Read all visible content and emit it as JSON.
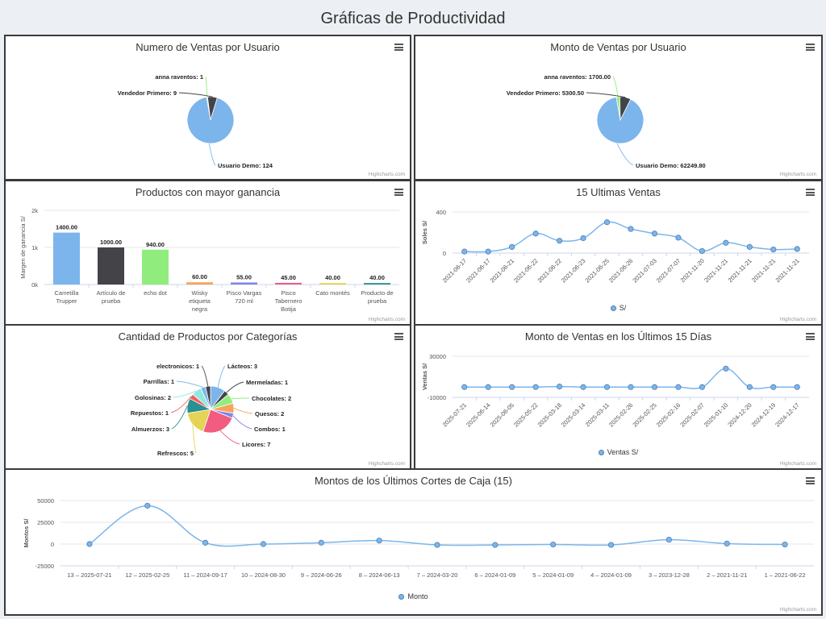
{
  "page": {
    "title": "Gráficas de Productividad",
    "credit": "Highcharts.com"
  },
  "colors": {
    "series": "#7cb5ec",
    "dark": "#434348",
    "green": "#90ed7d",
    "orange": "#f7a35c",
    "purple": "#8085e9",
    "pink": "#f15c80",
    "yellow": "#e4d354",
    "teal": "#2b908f",
    "red": "#f45b5b",
    "cyan": "#91e8e1"
  },
  "chart_data": [
    {
      "type": "pie",
      "title": "Numero de Ventas por Usuario",
      "slices": [
        {
          "label": "anna raventos: 1",
          "value": 1,
          "color": "#90ed7d"
        },
        {
          "label": "Vendedor Primero: 9",
          "value": 9,
          "color": "#434348"
        },
        {
          "label": "Usuario Demo: 124",
          "value": 124,
          "color": "#7cb5ec"
        }
      ]
    },
    {
      "type": "pie",
      "title": "Monto de Ventas por Usuario",
      "slices": [
        {
          "label": "anna raventos: 1700.00",
          "value": 1700.0,
          "color": "#90ed7d"
        },
        {
          "label": "Vendedor Primero: 5300.50",
          "value": 5300.5,
          "color": "#434348"
        },
        {
          "label": "Usuario Demo: 62249.80",
          "value": 62249.8,
          "color": "#7cb5ec"
        }
      ]
    },
    {
      "type": "bar",
      "title": "Productos con mayor ganancia",
      "ylabel": "Margen de ganancia S/",
      "ylim": [
        0,
        2000
      ],
      "yticks": [
        "0k",
        "1k",
        "2k"
      ],
      "categories": [
        "Carretilla Trupper",
        "Artículo de prueba",
        "echo dot",
        "Wisky etiqueta negra",
        "Pisco Vargas 720 ml",
        "Pisco Tabernero Botija",
        "Cato montés",
        "Producto de prueba"
      ],
      "values": [
        1400.0,
        1000.0,
        940.0,
        60.0,
        55.0,
        45.0,
        40.0,
        40.0
      ],
      "data_labels": [
        "1400.00",
        "1000.00",
        "940.00",
        "60.00",
        "55.00",
        "45.00",
        "40.00",
        "40.00"
      ],
      "colors": [
        "#7cb5ec",
        "#434348",
        "#90ed7d",
        "#f7a35c",
        "#8085e9",
        "#f15c80",
        "#e4d354",
        "#2b908f"
      ]
    },
    {
      "type": "line",
      "title": "15 Ultimas Ventas",
      "ylabel": "Soles S/",
      "ylim": [
        0,
        400
      ],
      "yticks": [
        "0",
        "400"
      ],
      "legend": "S/",
      "categories": [
        "2021-06-17",
        "2021-06-17",
        "2021-06-21",
        "2021-06-22",
        "2021-06-22",
        "2021-06-23",
        "2021-06-25",
        "2021-06-26",
        "2021-07-03",
        "2021-07-07",
        "2021-11-20",
        "2021-11-21",
        "2021-11-21",
        "2021-11-21",
        "2021-11-21"
      ],
      "values": [
        15,
        15,
        60,
        190,
        120,
        145,
        300,
        235,
        190,
        150,
        20,
        100,
        60,
        35,
        40
      ]
    },
    {
      "type": "pie",
      "title": "Cantidad de Productos por Categorías",
      "slices": [
        {
          "label": "Lácteos: 3",
          "value": 3,
          "color": "#7cb5ec"
        },
        {
          "label": "Mermeladas: 1",
          "value": 1,
          "color": "#434348"
        },
        {
          "label": "Chocolates: 2",
          "value": 2,
          "color": "#90ed7d"
        },
        {
          "label": "Quesos: 2",
          "value": 2,
          "color": "#f7a35c"
        },
        {
          "label": "Combos: 1",
          "value": 1,
          "color": "#8085e9"
        },
        {
          "label": "Licores: 7",
          "value": 7,
          "color": "#f15c80"
        },
        {
          "label": "Refrescos: 5",
          "value": 5,
          "color": "#e4d354"
        },
        {
          "label": "Almuerzos: 3",
          "value": 3,
          "color": "#2b908f"
        },
        {
          "label": "Repuestos: 1",
          "value": 1,
          "color": "#f45b5b"
        },
        {
          "label": "Golosinas: 2",
          "value": 2,
          "color": "#91e8e1"
        },
        {
          "label": "Parrillas: 1",
          "value": 1,
          "color": "#7cb5ec"
        },
        {
          "label": "electronicos: 1",
          "value": 1,
          "color": "#434348"
        }
      ]
    },
    {
      "type": "line",
      "title": "Monto de Ventas en los Últimos 15 Días",
      "ylabel": "Ventas S/",
      "ylim": [
        -10000,
        30000
      ],
      "yticks": [
        "-10000",
        "30000"
      ],
      "legend": "Ventas S/",
      "categories": [
        "2025-07-21",
        "2025-06-14",
        "2025-06-05",
        "2025-05-22",
        "2025-03-18",
        "2025-03-14",
        "2025-03-11",
        "2025-02-26",
        "2025-02-25",
        "2025-02-16",
        "2025-02-07",
        "2025-01-10",
        "2024-12-20",
        "2024-12-19",
        "2024-12-17"
      ],
      "values": [
        0,
        0,
        0,
        0,
        500,
        0,
        0,
        0,
        0,
        0,
        0,
        18000,
        0,
        0,
        0
      ]
    },
    {
      "type": "line",
      "title": "Montos de los Últimos Cortes de Caja (15)",
      "ylabel": "Montos S/",
      "ylim": [
        -25000,
        50000
      ],
      "yticks": [
        "50000",
        "25000",
        "0",
        "-25000"
      ],
      "legend": "Monto",
      "categories": [
        "13 – 2025-07-21",
        "12 – 2025-02-25",
        "11 – 2024-09-17",
        "10 – 2024-08-30",
        "9 – 2024-06-26",
        "8 – 2024-06-13",
        "7 – 2024-03-20",
        "6 – 2024-01-09",
        "5 – 2024-01-09",
        "4 – 2024-01-09",
        "3 – 2023-12-28",
        "2 – 2021-11-21",
        "1 – 2021-06-22"
      ],
      "values": [
        0,
        44000,
        1500,
        0,
        1500,
        4000,
        -1000,
        -1000,
        -500,
        -1000,
        5000,
        500,
        -500
      ]
    }
  ]
}
